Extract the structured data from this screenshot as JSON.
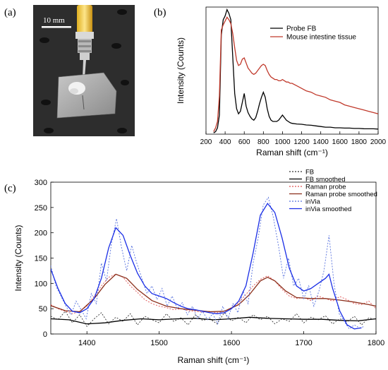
{
  "panels": {
    "a": "(a)",
    "b": "(b)",
    "c": "(c)"
  },
  "photo": {
    "scale_bar_label": "10 mm"
  },
  "chart_data": [
    {
      "type": "line",
      "panel": "(b)",
      "xlabel": "Raman shift (cm⁻¹)",
      "ylabel": "Intensity (Counts)",
      "xlim": [
        200,
        2000
      ],
      "xticks": [
        200,
        400,
        600,
        800,
        1000,
        1200,
        1400,
        1600,
        1800,
        2000
      ],
      "y_tick_labels_shown": false,
      "legend_position": "top-right",
      "series": [
        {
          "name": "Probe FB",
          "color": "#000000",
          "x": [
            280,
            300,
            320,
            340,
            360,
            380,
            400,
            420,
            440,
            460,
            480,
            500,
            520,
            540,
            560,
            580,
            600,
            620,
            640,
            660,
            680,
            700,
            720,
            740,
            760,
            780,
            800,
            820,
            840,
            860,
            880,
            900,
            920,
            940,
            960,
            980,
            1000,
            1020,
            1040,
            1060,
            1080,
            1100,
            1150,
            1200,
            1250,
            1300,
            1350,
            1400,
            1450,
            1500,
            1550,
            1600,
            1650,
            1700,
            1750,
            1800,
            1850,
            1900,
            1950,
            2000
          ],
          "values": [
            0.01,
            0.02,
            0.05,
            0.15,
            0.78,
            0.9,
            0.93,
            0.98,
            0.95,
            0.9,
            0.6,
            0.32,
            0.2,
            0.16,
            0.18,
            0.25,
            0.32,
            0.22,
            0.17,
            0.14,
            0.12,
            0.11,
            0.13,
            0.18,
            0.24,
            0.29,
            0.33,
            0.29,
            0.2,
            0.14,
            0.11,
            0.1,
            0.1,
            0.1,
            0.11,
            0.13,
            0.15,
            0.13,
            0.11,
            0.1,
            0.09,
            0.085,
            0.08,
            0.078,
            0.072,
            0.07,
            0.065,
            0.06,
            0.055,
            0.055,
            0.05,
            0.05,
            0.048,
            0.048,
            0.045,
            0.045,
            0.043,
            0.042,
            0.042,
            0.04
          ]
        },
        {
          "name": "Mouse intestine tissue",
          "color": "#c0392b",
          "x": [
            280,
            300,
            320,
            340,
            360,
            380,
            400,
            420,
            440,
            460,
            480,
            500,
            520,
            540,
            560,
            580,
            600,
            620,
            640,
            660,
            680,
            700,
            720,
            740,
            760,
            780,
            800,
            820,
            840,
            860,
            880,
            900,
            920,
            940,
            960,
            980,
            1000,
            1020,
            1040,
            1060,
            1080,
            1100,
            1150,
            1200,
            1250,
            1300,
            1350,
            1400,
            1450,
            1500,
            1550,
            1600,
            1650,
            1700,
            1750,
            1800,
            1850,
            1900,
            1950,
            2000
          ],
          "values": [
            0.02,
            0.05,
            0.1,
            0.3,
            0.82,
            0.86,
            0.89,
            0.92,
            0.9,
            0.87,
            0.79,
            0.68,
            0.58,
            0.54,
            0.55,
            0.59,
            0.6,
            0.56,
            0.52,
            0.5,
            0.48,
            0.47,
            0.48,
            0.5,
            0.52,
            0.54,
            0.55,
            0.54,
            0.5,
            0.47,
            0.45,
            0.44,
            0.43,
            0.43,
            0.42,
            0.42,
            0.43,
            0.42,
            0.41,
            0.41,
            0.4,
            0.4,
            0.38,
            0.36,
            0.34,
            0.33,
            0.31,
            0.3,
            0.29,
            0.27,
            0.26,
            0.25,
            0.23,
            0.22,
            0.21,
            0.2,
            0.19,
            0.18,
            0.17,
            0.16
          ]
        }
      ]
    },
    {
      "type": "line",
      "panel": "(c)",
      "xlabel": "Raman shift (cm⁻¹)",
      "ylabel": "Intensity (Counts)",
      "xlim": [
        1350,
        1800
      ],
      "ylim": [
        0,
        300
      ],
      "xticks": [
        1400,
        1500,
        1600,
        1700,
        1800
      ],
      "yticks": [
        0,
        50,
        100,
        150,
        200,
        250,
        300
      ],
      "legend_position": "top-right",
      "series": [
        {
          "name": "FB",
          "color": "#333333",
          "dash": "2,2",
          "x": [
            1350,
            1360,
            1370,
            1380,
            1390,
            1400,
            1410,
            1420,
            1430,
            1440,
            1450,
            1460,
            1470,
            1480,
            1490,
            1500,
            1510,
            1520,
            1530,
            1540,
            1550,
            1560,
            1570,
            1580,
            1590,
            1600,
            1610,
            1620,
            1630,
            1640,
            1650,
            1660,
            1670,
            1680,
            1690,
            1700,
            1710,
            1720,
            1730,
            1740,
            1750,
            1760,
            1770,
            1780,
            1790,
            1800
          ],
          "values": [
            35,
            28,
            45,
            22,
            38,
            15,
            30,
            42,
            20,
            33,
            25,
            40,
            18,
            35,
            28,
            22,
            40,
            25,
            32,
            18,
            38,
            27,
            30,
            20,
            42,
            26,
            33,
            22,
            38,
            28,
            35,
            20,
            30,
            25,
            40,
            22,
            33,
            28,
            36,
            20,
            30,
            24,
            35,
            18,
            32,
            28
          ]
        },
        {
          "name": "FB smoothed",
          "color": "#000000",
          "x": [
            1350,
            1375,
            1400,
            1425,
            1450,
            1475,
            1500,
            1525,
            1550,
            1575,
            1600,
            1625,
            1650,
            1675,
            1700,
            1725,
            1750,
            1775,
            1800
          ],
          "values": [
            30,
            28,
            20,
            22,
            27,
            30,
            28,
            30,
            31,
            28,
            30,
            33,
            31,
            30,
            29,
            29,
            27,
            26,
            30
          ]
        },
        {
          "name": "Raman probe",
          "color": "#e05050",
          "dash": "2,2",
          "x": [
            1350,
            1360,
            1370,
            1380,
            1390,
            1400,
            1410,
            1420,
            1430,
            1440,
            1450,
            1460,
            1470,
            1480,
            1490,
            1500,
            1510,
            1520,
            1530,
            1540,
            1550,
            1560,
            1570,
            1580,
            1590,
            1600,
            1610,
            1620,
            1630,
            1640,
            1650,
            1660,
            1670,
            1680,
            1690,
            1700,
            1710,
            1720,
            1730,
            1740,
            1750,
            1760,
            1770,
            1780,
            1790,
            1800
          ],
          "values": [
            58,
            50,
            45,
            40,
            45,
            55,
            75,
            95,
            112,
            118,
            112,
            95,
            82,
            68,
            60,
            55,
            52,
            48,
            50,
            46,
            45,
            43,
            45,
            42,
            45,
            52,
            62,
            78,
            95,
            108,
            115,
            105,
            88,
            75,
            70,
            72,
            66,
            75,
            70,
            65,
            74,
            68,
            60,
            58,
            65,
            50
          ]
        },
        {
          "name": "Raman probe smoothed",
          "color": "#8b2e1a",
          "x": [
            1350,
            1370,
            1390,
            1410,
            1425,
            1440,
            1455,
            1470,
            1490,
            1510,
            1530,
            1550,
            1570,
            1590,
            1610,
            1625,
            1640,
            1650,
            1660,
            1675,
            1690,
            1710,
            1730,
            1750,
            1770,
            1790,
            1800
          ],
          "values": [
            56,
            46,
            44,
            70,
            98,
            118,
            110,
            88,
            66,
            55,
            50,
            47,
            44,
            45,
            58,
            78,
            105,
            112,
            105,
            85,
            72,
            70,
            70,
            67,
            63,
            58,
            55
          ]
        },
        {
          "name": "inVia",
          "color": "#5570dd",
          "dash": "2,2",
          "x": [
            1350,
            1357,
            1364,
            1371,
            1378,
            1385,
            1392,
            1399,
            1406,
            1413,
            1420,
            1427,
            1434,
            1441,
            1448,
            1455,
            1462,
            1469,
            1476,
            1483,
            1490,
            1497,
            1504,
            1511,
            1518,
            1525,
            1532,
            1539,
            1546,
            1553,
            1560,
            1567,
            1574,
            1581,
            1588,
            1595,
            1602,
            1609,
            1616,
            1623,
            1630,
            1637,
            1644,
            1651,
            1658,
            1665,
            1672,
            1679,
            1686,
            1693,
            1700,
            1707,
            1714,
            1721,
            1728,
            1735,
            1742,
            1749,
            1756,
            1763,
            1770,
            1777,
            1784
          ],
          "values": [
            135,
            95,
            75,
            55,
            38,
            65,
            48,
            30,
            80,
            60,
            140,
            105,
            180,
            228,
            170,
            125,
            175,
            140,
            110,
            80,
            95,
            68,
            90,
            55,
            75,
            50,
            62,
            38,
            55,
            30,
            45,
            28,
            40,
            20,
            55,
            30,
            60,
            42,
            85,
            60,
            140,
            190,
            255,
            270,
            230,
            175,
            110,
            150,
            95,
            110,
            70,
            95,
            55,
            85,
            125,
            195,
            98,
            40,
            25,
            10,
            18,
            12,
            15
          ]
        },
        {
          "name": "inVia smoothed",
          "color": "#1a2ee6",
          "x": [
            1350,
            1360,
            1370,
            1380,
            1390,
            1400,
            1410,
            1420,
            1430,
            1440,
            1450,
            1460,
            1470,
            1480,
            1490,
            1500,
            1510,
            1520,
            1530,
            1540,
            1550,
            1560,
            1570,
            1580,
            1590,
            1600,
            1610,
            1620,
            1630,
            1640,
            1650,
            1660,
            1670,
            1680,
            1690,
            1700,
            1710,
            1720,
            1730,
            1735,
            1740,
            1750,
            1760,
            1770,
            1780
          ],
          "values": [
            128,
            90,
            60,
            45,
            42,
            50,
            70,
            110,
            170,
            210,
            195,
            155,
            120,
            95,
            80,
            75,
            70,
            62,
            55,
            50,
            48,
            45,
            42,
            40,
            42,
            50,
            65,
            95,
            160,
            235,
            258,
            240,
            190,
            130,
            95,
            85,
            90,
            100,
            110,
            118,
            90,
            45,
            18,
            10,
            12
          ]
        }
      ]
    }
  ]
}
